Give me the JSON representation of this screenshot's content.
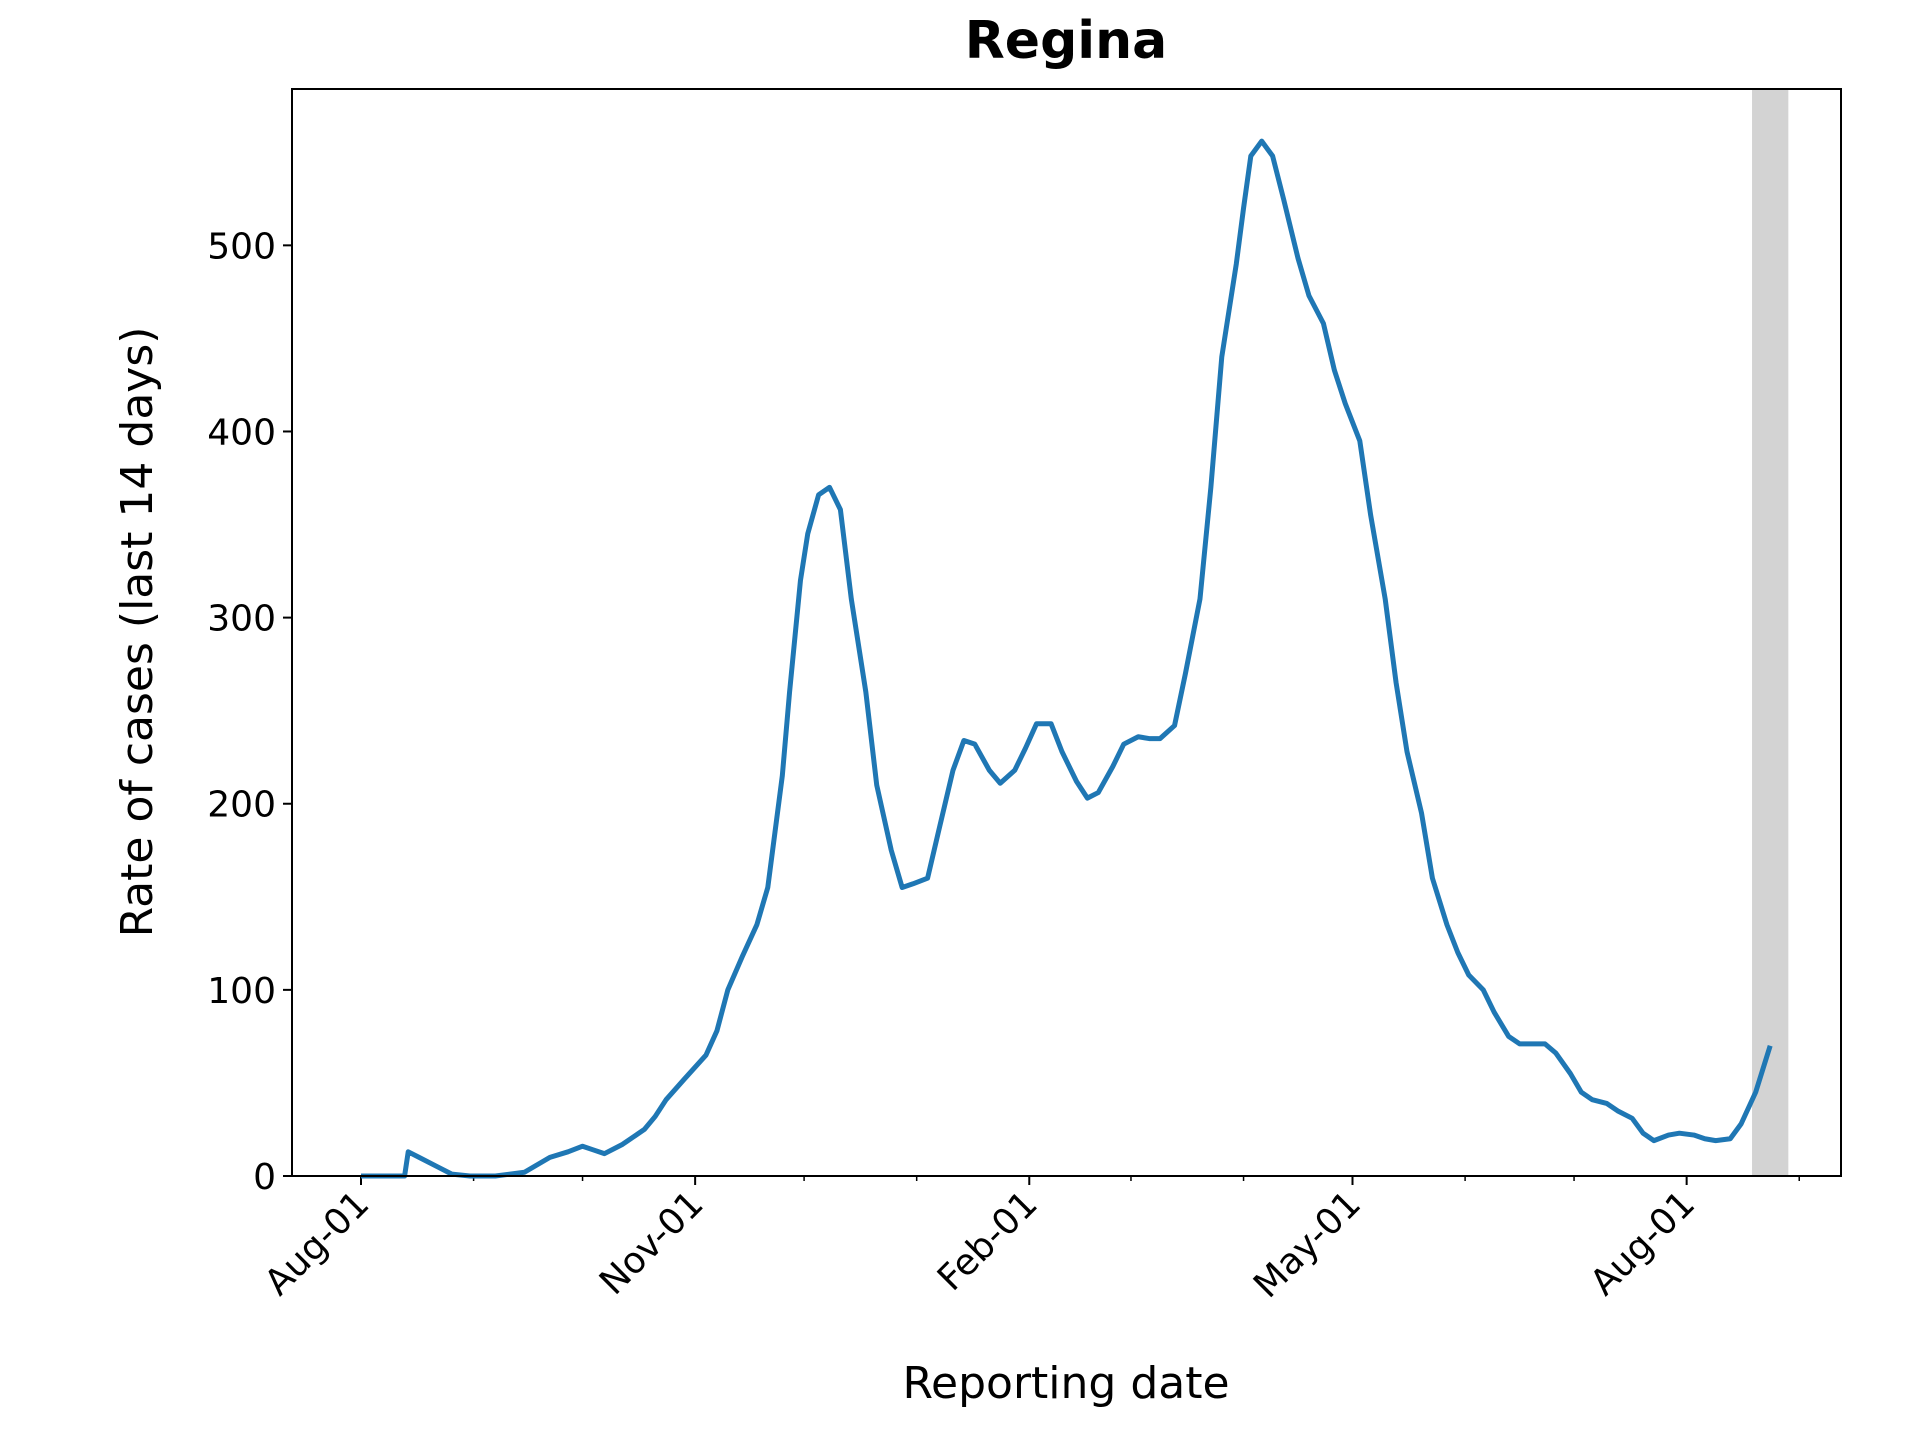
{
  "chart_data": {
    "type": "line",
    "title": "Regina",
    "x_label": "Reporting date",
    "y_label": "Rate of cases (last 14 days)",
    "x": [
      0,
      12,
      13,
      16,
      21,
      25,
      30,
      37,
      45,
      52,
      57,
      61,
      64,
      67,
      72,
      78,
      81,
      84,
      89,
      95,
      98,
      101,
      105,
      109,
      112,
      114,
      116,
      118,
      121,
      123,
      126,
      129,
      132,
      135,
      139,
      142,
      146,
      149,
      152,
      156,
      159,
      163,
      166,
      169,
      173,
      176,
      180,
      183,
      186,
      190,
      193,
      197,
      200,
      203,
      207,
      210,
      214,
      217,
      220,
      224,
      227,
      231,
      234,
      237,
      241,
      243,
      245,
      248,
      251,
      254,
      258,
      261,
      265,
      268,
      271,
      275,
      278,
      282,
      285,
      288,
      292,
      295,
      299,
      302,
      305,
      309,
      312,
      316,
      319,
      322,
      326,
      329,
      333,
      336,
      339,
      343,
      346,
      350,
      353,
      356,
      360,
      363,
      367,
      370,
      373,
      377,
      380,
      384,
      388
    ],
    "series": [
      {
        "name": "Rate of cases",
        "color": "#1f77b4",
        "values": [
          0,
          0,
          13,
          10,
          5,
          1,
          0,
          0,
          2,
          10,
          13,
          16,
          14,
          12,
          17,
          25,
          32,
          41,
          52,
          65,
          78,
          100,
          118,
          135,
          155,
          185,
          215,
          260,
          320,
          345,
          366,
          370,
          358,
          310,
          260,
          210,
          175,
          155,
          157,
          160,
          185,
          218,
          234,
          232,
          218,
          211,
          218,
          230,
          243,
          243,
          228,
          212,
          203,
          206,
          220,
          232,
          236,
          235,
          235,
          242,
          270,
          310,
          370,
          440,
          490,
          520,
          548,
          556,
          548,
          525,
          493,
          473,
          458,
          433,
          415,
          395,
          355,
          310,
          265,
          228,
          195,
          160,
          135,
          120,
          108,
          100,
          88,
          75,
          71,
          71,
          71,
          66,
          55,
          45,
          41,
          39,
          35,
          31,
          23,
          19,
          22,
          23,
          22,
          20,
          19,
          20,
          28,
          45,
          70
        ]
      }
    ],
    "xlim": [
      -19,
      407.5
    ],
    "ylim": [
      0,
      584
    ],
    "xticks": [
      {
        "value": 0,
        "label": "Aug-01"
      },
      {
        "value": 92,
        "label": "Nov-01"
      },
      {
        "value": 184,
        "label": "Feb-01"
      },
      {
        "value": 273,
        "label": "May-01"
      },
      {
        "value": 365,
        "label": "Aug-01"
      }
    ],
    "xminorticks": [
      31,
      61,
      122,
      153,
      212,
      243,
      304,
      334,
      396
    ],
    "yticks": [
      0,
      100,
      200,
      300,
      400,
      500
    ],
    "highlight_span": [
      383,
      393
    ],
    "highlight_color": "#d3d3d3",
    "grid": false
  }
}
